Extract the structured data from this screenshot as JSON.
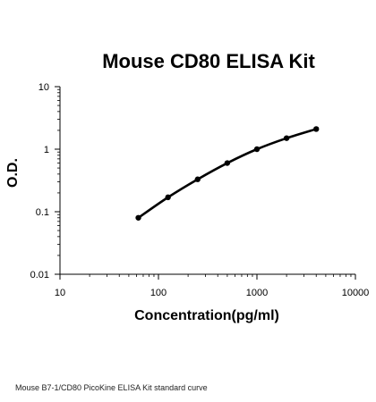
{
  "chart_data": {
    "type": "line",
    "title": "Mouse CD80 ELISA Kit",
    "xlabel": "Concentration(pg/ml)",
    "ylabel": "O.D.",
    "x_scale": "log",
    "y_scale": "log",
    "xlim": [
      10,
      10000
    ],
    "ylim": [
      0.01,
      10
    ],
    "x_ticks": [
      10,
      100,
      1000,
      10000
    ],
    "x_tick_labels": [
      "10",
      "100",
      "1000",
      "10000"
    ],
    "y_ticks": [
      0.01,
      0.1,
      1,
      10
    ],
    "y_tick_labels": [
      "0.01",
      "0.1",
      "1",
      "10"
    ],
    "grid": false,
    "legend": "none",
    "series": [
      {
        "x": [
          62.5,
          125,
          250,
          500,
          1000,
          2000,
          4000
        ],
        "y": [
          0.08,
          0.17,
          0.33,
          0.6,
          1.0,
          1.5,
          2.1
        ],
        "color": "#000000",
        "marker": "circle",
        "smooth": true
      }
    ]
  },
  "caption": "Mouse B7-1/CD80 PicoKine ELISA Kit standard curve"
}
